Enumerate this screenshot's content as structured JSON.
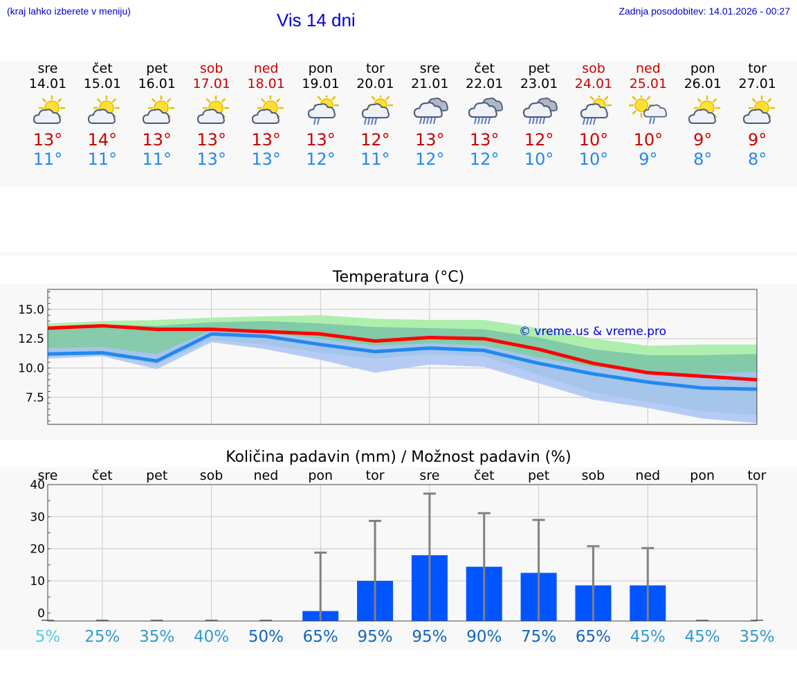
{
  "header": {
    "location_hint": "(kraj lahko izberete v meniju)",
    "title": "Vis 14 dni",
    "updated": "Zadnja posodobitev: 14.01.2026 - 00:27"
  },
  "forecast": [
    {
      "dow": "sre",
      "date": "14.01",
      "weekend": false,
      "icon": "partly-sunny-icon",
      "max": "13°",
      "min": "11°"
    },
    {
      "dow": "čet",
      "date": "15.01",
      "weekend": false,
      "icon": "partly-sunny-icon",
      "max": "14°",
      "min": "11°"
    },
    {
      "dow": "pet",
      "date": "16.01",
      "weekend": false,
      "icon": "partly-sunny-icon",
      "max": "13°",
      "min": "11°"
    },
    {
      "dow": "sob",
      "date": "17.01",
      "weekend": true,
      "icon": "partly-sunny-icon",
      "max": "13°",
      "min": "13°"
    },
    {
      "dow": "ned",
      "date": "18.01",
      "weekend": true,
      "icon": "partly-sunny-icon",
      "max": "13°",
      "min": "13°"
    },
    {
      "dow": "pon",
      "date": "19.01",
      "weekend": false,
      "icon": "sun-cloud-light-rain-icon",
      "max": "13°",
      "min": "12°"
    },
    {
      "dow": "tor",
      "date": "20.01",
      "weekend": false,
      "icon": "sun-cloud-rain-icon",
      "max": "12°",
      "min": "11°"
    },
    {
      "dow": "sre",
      "date": "21.01",
      "weekend": false,
      "icon": "cloud-rain-icon",
      "max": "13°",
      "min": "12°"
    },
    {
      "dow": "čet",
      "date": "22.01",
      "weekend": false,
      "icon": "cloud-rain-icon",
      "max": "13°",
      "min": "12°"
    },
    {
      "dow": "pet",
      "date": "23.01",
      "weekend": false,
      "icon": "cloud-rain-icon",
      "max": "12°",
      "min": "10°"
    },
    {
      "dow": "sob",
      "date": "24.01",
      "weekend": true,
      "icon": "sun-cloud-rain-icon",
      "max": "10°",
      "min": "10°"
    },
    {
      "dow": "ned",
      "date": "25.01",
      "weekend": true,
      "icon": "sun-small-cloud-rain-icon",
      "max": "10°",
      "min": "9°"
    },
    {
      "dow": "pon",
      "date": "26.01",
      "weekend": false,
      "icon": "partly-sunny-icon",
      "max": "9°",
      "min": "8°"
    },
    {
      "dow": "tor",
      "date": "27.01",
      "weekend": false,
      "icon": "partly-sunny-icon",
      "max": "9°",
      "min": "8°"
    }
  ],
  "colors": {
    "max": "#ff0000",
    "min": "#2288ee",
    "weekend": "#cc0000",
    "bar": "#0055ff"
  },
  "chart_data": [
    {
      "type": "line",
      "title": "Temperatura (°C)",
      "watermark": "© vreme.us & vreme.pro",
      "ylim": [
        5.2,
        16.7
      ],
      "yticks": [
        7.5,
        10.0,
        12.5,
        15.0
      ],
      "ytick_labels": [
        "7.5",
        "10.0",
        "12.5",
        "15.0"
      ],
      "series": [
        {
          "name": "max",
          "values": [
            13.4,
            13.6,
            13.3,
            13.3,
            13.1,
            12.9,
            12.3,
            12.6,
            12.5,
            11.6,
            10.4,
            9.6,
            9.3,
            9.0
          ]
        },
        {
          "name": "min",
          "values": [
            11.2,
            11.3,
            10.6,
            12.9,
            12.7,
            12.0,
            11.4,
            11.7,
            11.5,
            10.4,
            9.5,
            8.8,
            8.3,
            8.2
          ]
        }
      ],
      "bands": [
        {
          "name": "outer",
          "color": "#aaeeaa",
          "upper": [
            13.8,
            14.0,
            14.1,
            14.3,
            14.4,
            14.5,
            14.2,
            14.1,
            14.1,
            13.4,
            12.5,
            11.9,
            12.0,
            12.0
          ],
          "lower": [
            13.1,
            13.3,
            12.9,
            12.9,
            12.7,
            12.5,
            12.0,
            12.2,
            12.1,
            11.1,
            9.9,
            9.2,
            8.9,
            8.6
          ]
        },
        {
          "name": "inner",
          "color": "#80c8a8",
          "upper": [
            13.5,
            13.7,
            13.6,
            13.9,
            14.0,
            13.8,
            13.5,
            13.4,
            13.3,
            12.6,
            11.6,
            11.1,
            11.1,
            11.2
          ],
          "lower": [
            11.0,
            11.1,
            10.3,
            12.4,
            12.0,
            11.3,
            10.8,
            11.2,
            11.0,
            9.4,
            7.9,
            7.1,
            6.3,
            6.0
          ]
        },
        {
          "name": "min-band",
          "color": "#aac4f4",
          "upper": [
            11.7,
            11.8,
            11.2,
            13.2,
            13.0,
            12.5,
            11.9,
            12.1,
            11.9,
            10.9,
            10.1,
            9.6,
            9.5,
            9.7
          ],
          "lower": [
            10.8,
            11.0,
            9.9,
            12.2,
            11.6,
            10.7,
            9.6,
            10.3,
            10.1,
            8.7,
            7.3,
            6.6,
            5.7,
            5.3
          ]
        }
      ]
    },
    {
      "type": "bar",
      "title": "Količina padavin (mm) / Možnost padavin (%)",
      "categories": [
        "sre",
        "čet",
        "pet",
        "sob",
        "ned",
        "pon",
        "tor",
        "sre",
        "čet",
        "pet",
        "sob",
        "ned",
        "pon",
        "tor"
      ],
      "ylim": [
        -2.5,
        40
      ],
      "yticks": [
        0,
        10,
        20,
        30,
        40
      ],
      "ytick_labels": [
        "0",
        "10",
        "20",
        "30",
        "40"
      ],
      "values": [
        0,
        0,
        0,
        0,
        0,
        0.6,
        10,
        18,
        14.4,
        12.5,
        8.6,
        8.6,
        0,
        0
      ],
      "whisker_max": [
        0,
        0,
        0,
        0,
        0,
        18.8,
        28.7,
        37.2,
        31.1,
        29,
        20.8,
        20.2,
        0,
        0
      ],
      "probability_labels": [
        "5%",
        "25%",
        "35%",
        "40%",
        "50%",
        "65%",
        "95%",
        "95%",
        "90%",
        "75%",
        "65%",
        "45%",
        "45%",
        "35%"
      ],
      "probability_colors": [
        "#55ccdd",
        "#3399cc",
        "#3399cc",
        "#3399cc",
        "#1166bb",
        "#1166bb",
        "#1166bb",
        "#1166bb",
        "#1166bb",
        "#1166bb",
        "#1166bb",
        "#3399cc",
        "#3399cc",
        "#3399cc"
      ]
    }
  ]
}
